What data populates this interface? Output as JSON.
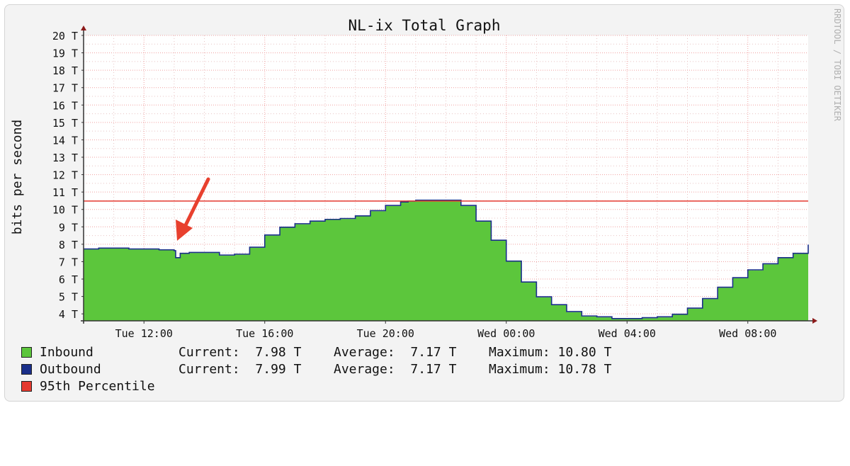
{
  "chart_data": {
    "type": "area",
    "title": "NL-ix Total Graph",
    "ylabel": "bits per second",
    "y_unit": "T",
    "ylim": [
      3.6,
      20
    ],
    "y_ticks": [
      4,
      5,
      6,
      7,
      8,
      9,
      10,
      11,
      12,
      13,
      14,
      15,
      16,
      17,
      18,
      19,
      20
    ],
    "x_start": "Tue 10:00",
    "x_end": "Wed 12:00",
    "x_ticks": [
      "Tue 12:00",
      "Tue 16:00",
      "Tue 20:00",
      "Wed 00:00",
      "Wed 04:00",
      "Wed 08:00"
    ],
    "x_tick_hours": [
      12,
      16,
      20,
      24,
      28,
      32
    ],
    "grid": true,
    "percentile_95": 10.48,
    "watermark": "RRDTOOL / TOBI OETIKER",
    "series": [
      {
        "name": "Inbound",
        "color": "#5cc63c",
        "x_hours": [
          10.0,
          10.5,
          11.0,
          11.5,
          12.0,
          12.5,
          13.0,
          13.05,
          13.2,
          13.5,
          14.0,
          14.5,
          15.0,
          15.5,
          16.0,
          16.5,
          17.0,
          17.5,
          18.0,
          18.5,
          19.0,
          19.5,
          20.0,
          20.5,
          20.75,
          21.0,
          21.5,
          22.0,
          22.5,
          23.0,
          23.5,
          24.0,
          24.5,
          25.0,
          25.5,
          26.0,
          26.5,
          27.0,
          27.5,
          28.0,
          28.5,
          29.0,
          29.5,
          30.0,
          30.5,
          31.0,
          31.5,
          32.0,
          32.5,
          33.0,
          33.5,
          34.0
        ],
        "values": [
          7.7,
          7.75,
          7.75,
          7.7,
          7.7,
          7.65,
          7.6,
          7.2,
          7.45,
          7.5,
          7.5,
          7.35,
          7.4,
          7.8,
          8.5,
          8.95,
          9.15,
          9.3,
          9.4,
          9.45,
          9.6,
          9.9,
          10.2,
          10.4,
          10.45,
          10.5,
          10.5,
          10.5,
          10.2,
          9.3,
          8.2,
          7.0,
          5.8,
          4.95,
          4.5,
          4.1,
          3.85,
          3.8,
          3.7,
          3.7,
          3.75,
          3.8,
          3.95,
          4.3,
          4.85,
          5.5,
          6.05,
          6.5,
          6.85,
          7.2,
          7.45,
          7.95
        ],
        "current": "7.98 T",
        "average": "7.17 T",
        "maximum": "10.80 T"
      },
      {
        "name": "Outbound",
        "color": "#1a2f8a",
        "current": "7.99 T",
        "average": "7.17 T",
        "maximum": "10.78 T"
      },
      {
        "name": "95th Percentile",
        "color": "#e53a30"
      }
    ]
  },
  "legend": {
    "current_label": "Current:",
    "average_label": "Average:",
    "maximum_label": "Maximum:"
  },
  "annotation": {
    "type": "arrow",
    "color": "#e8402e",
    "points_to_hour": 13.05
  }
}
